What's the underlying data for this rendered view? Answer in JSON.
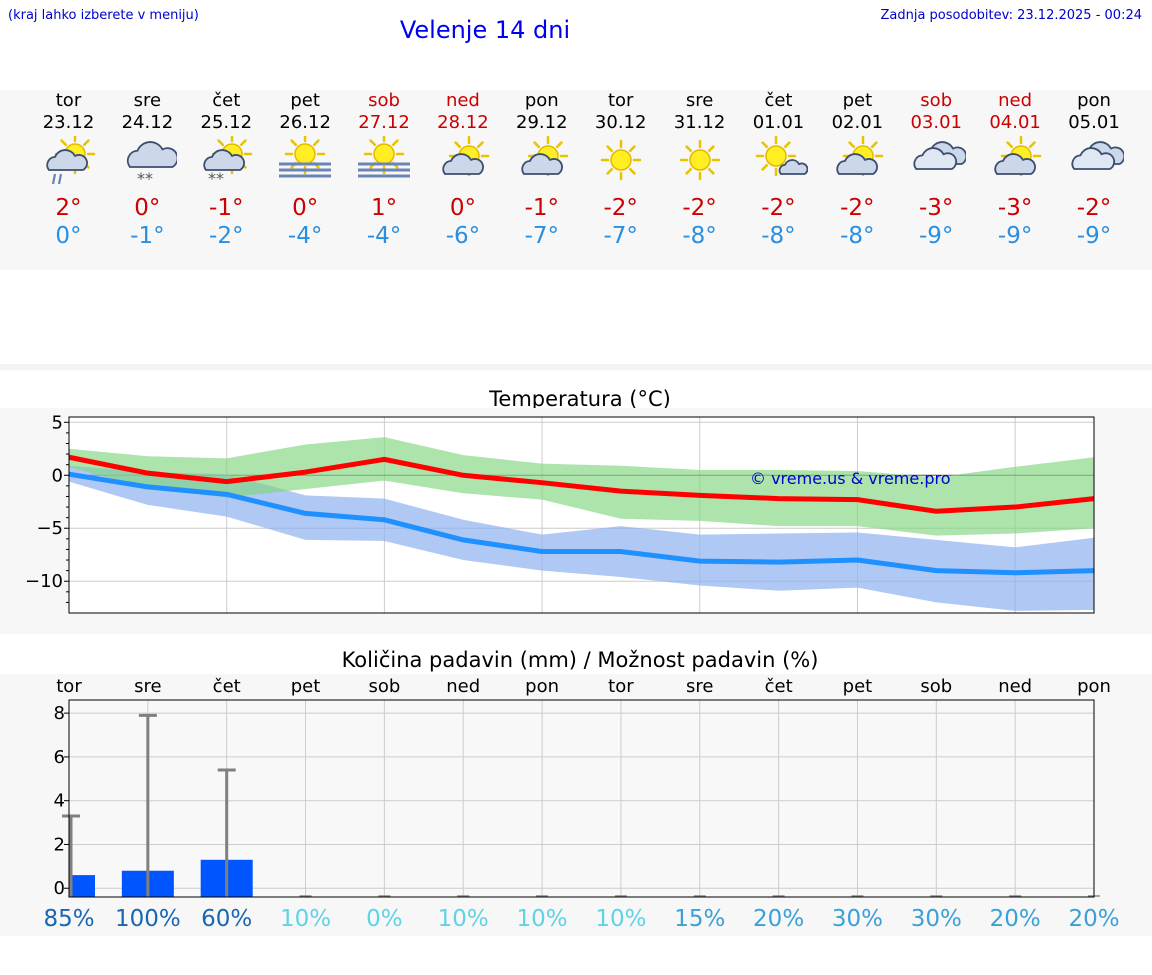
{
  "header": {
    "hint": "(kraj lahko izberete v meniju)",
    "title": "Velenje 14 dni",
    "updated": "Zadnja posodobitev: 23.12.2025 - 00:24"
  },
  "days": [
    {
      "dow": "tor",
      "date": "23.12",
      "weekend": false,
      "icon": "sun-cloud-rain-icon",
      "max": "2°",
      "min": "0°"
    },
    {
      "dow": "sre",
      "date": "24.12",
      "weekend": false,
      "icon": "cloud-snow-icon",
      "max": "0°",
      "min": "-1°"
    },
    {
      "dow": "čet",
      "date": "25.12",
      "weekend": false,
      "icon": "sun-cloud-snow-icon",
      "max": "-1°",
      "min": "-2°"
    },
    {
      "dow": "pet",
      "date": "26.12",
      "weekend": false,
      "icon": "sun-fog-icon",
      "max": "0°",
      "min": "-4°"
    },
    {
      "dow": "sob",
      "date": "27.12",
      "weekend": true,
      "icon": "sun-fog-icon",
      "max": "1°",
      "min": "-4°"
    },
    {
      "dow": "ned",
      "date": "28.12",
      "weekend": true,
      "icon": "sun-cloud-icon",
      "max": "0°",
      "min": "-6°"
    },
    {
      "dow": "pon",
      "date": "29.12",
      "weekend": false,
      "icon": "sun-cloud-icon",
      "max": "-1°",
      "min": "-7°"
    },
    {
      "dow": "tor",
      "date": "30.12",
      "weekend": false,
      "icon": "sun-icon",
      "max": "-2°",
      "min": "-7°"
    },
    {
      "dow": "sre",
      "date": "31.12",
      "weekend": false,
      "icon": "sun-icon",
      "max": "-2°",
      "min": "-8°"
    },
    {
      "dow": "čet",
      "date": "01.01",
      "weekend": false,
      "icon": "sun-small-cloud-icon",
      "max": "-2°",
      "min": "-8°"
    },
    {
      "dow": "pet",
      "date": "02.01",
      "weekend": false,
      "icon": "sun-cloud-icon",
      "max": "-2°",
      "min": "-8°"
    },
    {
      "dow": "sob",
      "date": "03.01",
      "weekend": true,
      "icon": "cloud-icon",
      "max": "-3°",
      "min": "-9°"
    },
    {
      "dow": "ned",
      "date": "04.01",
      "weekend": true,
      "icon": "sun-cloud-icon",
      "max": "-3°",
      "min": "-9°"
    },
    {
      "dow": "pon",
      "date": "05.01",
      "weekend": false,
      "icon": "cloud-icon",
      "max": "-2°",
      "min": "-9°"
    }
  ],
  "chart_data": [
    {
      "type": "line",
      "title": "Temperatura (°C)",
      "watermark": "© vreme.us & vreme.pro",
      "ylim": [
        -13,
        5.5
      ],
      "yticks": [
        5,
        0,
        -5,
        -10
      ],
      "ytick_labels": [
        "5",
        "0",
        "−5",
        "−10"
      ],
      "x": [
        0,
        1,
        2,
        3,
        4,
        5,
        6,
        7,
        8,
        9,
        10,
        11,
        12,
        13
      ],
      "series": [
        {
          "name": "max",
          "color": "#ff0000",
          "values": [
            1.7,
            0.2,
            -0.6,
            0.3,
            1.5,
            0.0,
            -0.7,
            -1.5,
            -1.9,
            -2.2,
            -2.3,
            -3.4,
            -3.0,
            -2.2
          ]
        },
        {
          "name": "min",
          "color": "#1e90ff",
          "values": [
            0.1,
            -1.1,
            -1.8,
            -3.6,
            -4.2,
            -6.1,
            -7.2,
            -7.2,
            -8.1,
            -8.2,
            -8.0,
            -9.0,
            -9.2,
            -9.0
          ]
        }
      ],
      "bands": [
        {
          "name": "max-range",
          "color": "#7fd67f",
          "upper": [
            2.5,
            1.8,
            1.6,
            2.9,
            3.6,
            1.9,
            1.1,
            0.9,
            0.5,
            0.5,
            0.4,
            -0.2,
            0.8,
            1.7
          ],
          "lower": [
            0.8,
            -1.3,
            -2.1,
            -1.3,
            -0.5,
            -1.7,
            -2.3,
            -4.1,
            -4.3,
            -4.8,
            -4.8,
            -5.7,
            -5.5,
            -5.0
          ]
        },
        {
          "name": "min-range",
          "color": "#8fb0f0",
          "upper": [
            0.9,
            0.3,
            0.1,
            -1.9,
            -2.2,
            -4.2,
            -5.6,
            -4.8,
            -5.6,
            -5.5,
            -5.4,
            -6.1,
            -6.8,
            -5.9
          ]
        },
        {
          "name": "min-range-lower",
          "color": "#8fb0f0",
          "lower": [
            -0.6,
            -2.8,
            -3.9,
            -6.1,
            -6.2,
            -8.0,
            -9.0,
            -9.6,
            -10.4,
            -10.9,
            -10.6,
            -12.0,
            -12.8,
            -12.7
          ]
        }
      ]
    },
    {
      "type": "bar",
      "title": "Količina padavin (mm) / Možnost padavin (%)",
      "categories": [
        "tor",
        "sre",
        "čet",
        "pet",
        "sob",
        "ned",
        "pon",
        "tor",
        "sre",
        "čet",
        "pet",
        "sob",
        "ned",
        "pon"
      ],
      "ylim": [
        -0.4,
        8.6
      ],
      "yticks": [
        0,
        2,
        4,
        6,
        8
      ],
      "ytick_labels": [
        "0",
        "2",
        "4",
        "6",
        "8"
      ],
      "bar_color": "#0055ff",
      "values": [
        0.6,
        0.8,
        1.3,
        0,
        0,
        0,
        0,
        0,
        0,
        0,
        0,
        0,
        0,
        0
      ],
      "max_values": [
        3.3,
        7.9,
        5.4,
        0,
        0,
        0,
        0,
        0,
        0,
        0,
        0,
        0,
        0,
        0
      ],
      "probability": [
        "85%",
        "100%",
        "60%",
        "10%",
        "0%",
        "10%",
        "10%",
        "10%",
        "15%",
        "20%",
        "30%",
        "30%",
        "20%",
        "20%"
      ],
      "probability_colors": [
        "#1a66b3",
        "#1a66b3",
        "#1a66b3",
        "#5fd3e6",
        "#5fd3e6",
        "#5fd3e6",
        "#5fd3e6",
        "#5fd3e6",
        "#3aa0d8",
        "#3aa0d8",
        "#3aa0d8",
        "#3aa0d8",
        "#3aa0d8",
        "#3aa0d8"
      ]
    }
  ]
}
